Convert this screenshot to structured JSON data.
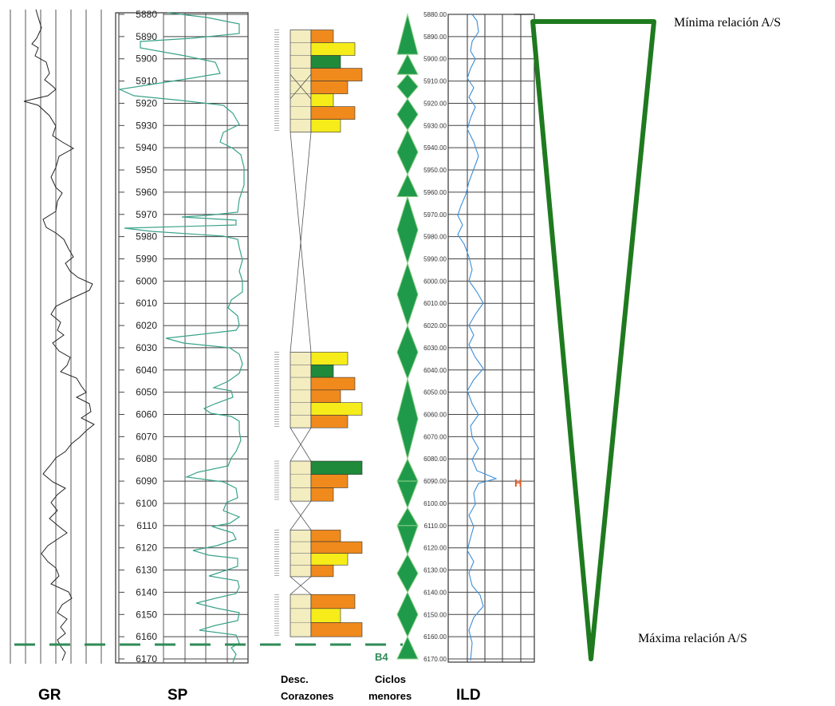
{
  "chart_data": {
    "type": "diagram",
    "depth_axis": {
      "min": 5880,
      "max": 6170,
      "step": 10,
      "sp_ticks": [
        "5880",
        "5890",
        "5900",
        "5910",
        "5920",
        "5930",
        "5940",
        "5950",
        "5960",
        "5970",
        "5980",
        "5990",
        "6000",
        "6010",
        "6020",
        "6030",
        "6040",
        "6050",
        "6060",
        "6070",
        "6080",
        "6090",
        "6100",
        "6110",
        "6120",
        "6130",
        "6140",
        "6150",
        "6160",
        "6170"
      ],
      "ild_ticks": [
        "5880.00",
        "5890.00",
        "5900.00",
        "5910.00",
        "5920.00",
        "5930.00",
        "5940.00",
        "5950.00",
        "5960.00",
        "5970.00",
        "5980.00",
        "5990.00",
        "6000.00",
        "6010.00",
        "6020.00",
        "6030.00",
        "6040.00",
        "6050.00",
        "6060.00",
        "6070.00",
        "6080.00",
        "6090.00",
        "6100.00",
        "6110.00",
        "6120.00",
        "6130.00",
        "6140.00",
        "6150.00",
        "6160.00",
        "6170.00"
      ]
    },
    "tracks": [
      {
        "id": "gr",
        "label": "GR"
      },
      {
        "id": "sp",
        "label": "SP"
      },
      {
        "id": "cores",
        "label_line1": "Desc.",
        "label_line2": "Corazones"
      },
      {
        "id": "cycles",
        "label_line1": "Ciclos",
        "label_line2": "menores"
      },
      {
        "id": "ild",
        "label": "ILD"
      }
    ],
    "markers": [
      {
        "label": "B4",
        "depth": 6163,
        "color": "#2e8b57"
      },
      {
        "label": "H",
        "depth": 6090,
        "color": "#e2541b"
      }
    ],
    "annotations": [
      {
        "text": "Mínima relación A/S",
        "position": "top-right"
      },
      {
        "text": "Máxima relación A/S",
        "position": "bottom-right"
      }
    ],
    "cores": [
      {
        "top": 5887,
        "base": 5933
      },
      {
        "top": 6032,
        "base": 6066
      },
      {
        "top": 6081,
        "base": 6099
      },
      {
        "top": 6112,
        "base": 6133
      },
      {
        "top": 6141,
        "base": 6160
      }
    ],
    "cycles": [
      {
        "top": 5880,
        "base": 5898,
        "dir": "up"
      },
      {
        "top": 5898,
        "base": 5907,
        "dir": "up"
      },
      {
        "top": 5907,
        "base": 5918,
        "dir": "diamond"
      },
      {
        "top": 5918,
        "base": 5932,
        "dir": "diamond"
      },
      {
        "top": 5932,
        "base": 5952,
        "dir": "diamond"
      },
      {
        "top": 5952,
        "base": 5962,
        "dir": "up"
      },
      {
        "top": 5962,
        "base": 5992,
        "dir": "diamond"
      },
      {
        "top": 5992,
        "base": 6020,
        "dir": "diamond"
      },
      {
        "top": 6020,
        "base": 6044,
        "dir": "diamond"
      },
      {
        "top": 6044,
        "base": 6080,
        "dir": "diamond"
      },
      {
        "top": 6080,
        "base": 6090,
        "dir": "up"
      },
      {
        "top": 6090,
        "base": 6102,
        "dir": "down"
      },
      {
        "top": 6102,
        "base": 6110,
        "dir": "up"
      },
      {
        "top": 6110,
        "base": 6123,
        "dir": "down"
      },
      {
        "top": 6123,
        "base": 6140,
        "dir": "diamond"
      },
      {
        "top": 6140,
        "base": 6160,
        "dir": "diamond"
      },
      {
        "top": 6160,
        "base": 6170,
        "dir": "up"
      }
    ]
  }
}
